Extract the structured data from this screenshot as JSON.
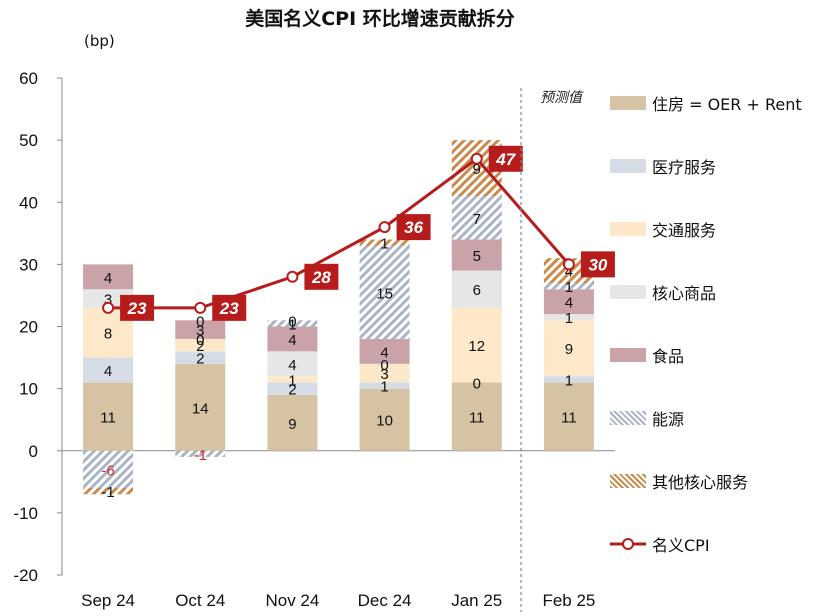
{
  "title": "美国名义CPI 环比增速贡献拆分",
  "unit": "(bp)",
  "forecast_label": "预测值",
  "colors": {
    "housing": "#d6c3a3",
    "medical": "#d6dce6",
    "transport": "#fde9c9",
    "core_goods": "#e6e6e6",
    "food": "#c9a3a8",
    "energy_stripe": "#a9b5c7",
    "other_stripe": "#c98a4b",
    "cpi_line": "#b71c1c"
  },
  "chart_data": {
    "type": "bar",
    "stacked": true,
    "categories": [
      "Sep 24",
      "Oct 24",
      "Nov 24",
      "Dec 24",
      "Jan 25",
      "Feb 25"
    ],
    "forecast_categories": [
      "Feb 25"
    ],
    "ylim": [
      -20,
      60
    ],
    "yticks": [
      -20,
      -10,
      0,
      10,
      20,
      30,
      40,
      50,
      60
    ],
    "series": [
      {
        "name": "住房 = OER + Rent",
        "key": "housing",
        "values": [
          11,
          14,
          9,
          10,
          11,
          11
        ]
      },
      {
        "name": "医疗服务",
        "key": "medical",
        "values": [
          4,
          2,
          2,
          1,
          0,
          1
        ]
      },
      {
        "name": "交通服务",
        "key": "transport",
        "values": [
          8,
          2,
          1,
          3,
          12,
          9
        ]
      },
      {
        "name": "核心商品",
        "key": "core_goods",
        "values": [
          3,
          0,
          4,
          0,
          6,
          1
        ]
      },
      {
        "name": "食品",
        "key": "food",
        "values": [
          4,
          3,
          4,
          4,
          5,
          4
        ]
      },
      {
        "name": "能源",
        "key": "energy",
        "values": [
          -6,
          -1,
          1,
          15,
          7,
          1
        ]
      },
      {
        "name": "其他核心服务",
        "key": "other",
        "values": [
          -1,
          0,
          0,
          1,
          9,
          4
        ]
      }
    ],
    "line": {
      "name": "名义CPI",
      "values": [
        23,
        23,
        28,
        36,
        47,
        30
      ]
    },
    "grid": false,
    "legend_position": "right"
  }
}
